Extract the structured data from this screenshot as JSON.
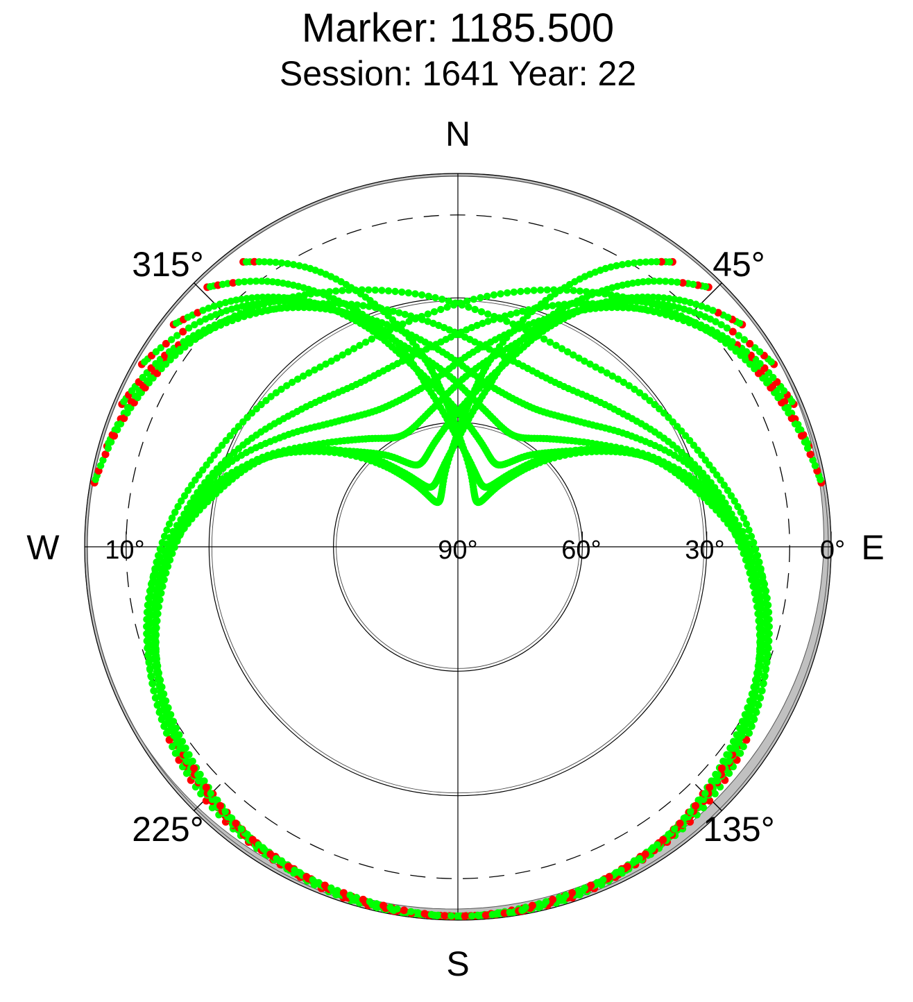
{
  "chart_data": {
    "type": "scatter",
    "projection": "polar-skyplot",
    "title": "Marker: 1185.500",
    "subtitle": "Session: 1641 Year: 22",
    "compass": {
      "north": "N",
      "east": "E",
      "south": "S",
      "west": "W"
    },
    "azimuth_labels": [
      {
        "az": 45,
        "text": "45°"
      },
      {
        "az": 135,
        "text": "135°"
      },
      {
        "az": 225,
        "text": "225°"
      },
      {
        "az": 315,
        "text": "315°"
      }
    ],
    "elevation_labels": [
      {
        "el": 90,
        "text": "90°"
      },
      {
        "el": 60,
        "text": "60°"
      },
      {
        "el": 30,
        "text": "30°"
      },
      {
        "el": 0,
        "text": "0°"
      },
      {
        "el": 10,
        "text": "10°"
      }
    ],
    "elevation_circles": [
      0,
      30,
      60
    ],
    "cutoff_elevation": 10,
    "elevation_range": [
      0,
      90
    ],
    "grid": true,
    "colors": {
      "observed": "#00ff00",
      "flagged": "#ff0000",
      "horizon_mask": "#c0c0c0",
      "grid": "#000000"
    },
    "hole": {
      "center_az": 0,
      "center_el": 36,
      "radius_deg": 30
    },
    "tracks": [
      {
        "sense": "cw",
        "az": [
          323,
          332,
          341,
          350,
          356,
          3,
          16,
          26,
          34,
          42,
          55,
          66,
          80,
          96,
          112,
          128,
          150,
          176
        ],
        "el": [
          4,
          14,
          28,
          44,
          56,
          66,
          76,
          78,
          72,
          64,
          50,
          38,
          26,
          16,
          10,
          6,
          3,
          1
        ]
      },
      {
        "sense": "ccw",
        "az": [
          37,
          28,
          19,
          10,
          4,
          357,
          344,
          334,
          326,
          318,
          305,
          294,
          280,
          264,
          248,
          232,
          210,
          184
        ],
        "el": [
          4,
          14,
          28,
          44,
          56,
          66,
          76,
          78,
          72,
          64,
          50,
          38,
          26,
          16,
          10,
          6,
          3,
          1
        ]
      },
      {
        "sense": "cw",
        "az": [
          316,
          325,
          334,
          343,
          350,
          0,
          14,
          26,
          36,
          46,
          60,
          72,
          86,
          102,
          118,
          134,
          154,
          170
        ],
        "el": [
          3,
          12,
          24,
          38,
          52,
          64,
          72,
          74,
          68,
          58,
          44,
          33,
          23,
          14,
          8,
          4,
          2,
          1
        ]
      },
      {
        "sense": "ccw",
        "az": [
          44,
          35,
          26,
          17,
          10,
          0,
          346,
          334,
          324,
          314,
          300,
          288,
          274,
          258,
          242,
          226,
          206,
          190
        ],
        "el": [
          3,
          12,
          24,
          38,
          52,
          64,
          72,
          74,
          68,
          58,
          44,
          33,
          23,
          14,
          8,
          4,
          2,
          1
        ]
      },
      {
        "sense": "cw",
        "az": [
          308,
          318,
          328,
          337,
          346,
          358,
          12,
          26,
          38,
          50,
          64,
          78,
          92,
          108,
          124,
          140,
          158,
          172
        ],
        "el": [
          3,
          10,
          20,
          32,
          45,
          56,
          64,
          68,
          62,
          54,
          40,
          30,
          20,
          13,
          8,
          4,
          2,
          1
        ]
      },
      {
        "sense": "ccw",
        "az": [
          52,
          42,
          32,
          23,
          14,
          2,
          348,
          334,
          322,
          310,
          296,
          282,
          268,
          252,
          236,
          220,
          202,
          188
        ],
        "el": [
          3,
          10,
          20,
          32,
          45,
          56,
          64,
          68,
          62,
          54,
          40,
          30,
          20,
          13,
          8,
          4,
          2,
          1
        ]
      },
      {
        "sense": "cw",
        "az": [
          300,
          312,
          323,
          333,
          343,
          356,
          10,
          26,
          40,
          54,
          68,
          82,
          98,
          114,
          130,
          146,
          162,
          178
        ],
        "el": [
          2,
          8,
          16,
          26,
          38,
          48,
          56,
          60,
          56,
          48,
          36,
          26,
          18,
          11,
          6,
          3,
          1,
          1
        ]
      },
      {
        "sense": "ccw",
        "az": [
          60,
          48,
          37,
          27,
          17,
          4,
          350,
          334,
          320,
          306,
          292,
          278,
          262,
          246,
          230,
          214,
          198,
          182
        ],
        "el": [
          2,
          8,
          16,
          26,
          38,
          48,
          56,
          60,
          56,
          48,
          36,
          26,
          18,
          11,
          6,
          3,
          1,
          1
        ]
      },
      {
        "sense": "cw",
        "az": [
          293,
          304,
          316,
          328,
          340,
          354,
          10,
          28,
          44,
          58,
          72,
          88,
          104,
          120,
          136,
          152,
          166,
          182
        ],
        "el": [
          2,
          6,
          13,
          22,
          32,
          42,
          50,
          52,
          48,
          40,
          30,
          22,
          15,
          9,
          5,
          3,
          1,
          1
        ]
      },
      {
        "sense": "ccw",
        "az": [
          67,
          56,
          44,
          32,
          20,
          6,
          350,
          332,
          316,
          302,
          288,
          272,
          256,
          240,
          224,
          208,
          194,
          178
        ],
        "el": [
          2,
          6,
          13,
          22,
          32,
          42,
          50,
          52,
          48,
          40,
          30,
          22,
          15,
          9,
          5,
          3,
          1,
          1
        ]
      },
      {
        "sense": "cw",
        "az": [
          286,
          298,
          310,
          323,
          336,
          352,
          10,
          30,
          48,
          64,
          80,
          96,
          112,
          128,
          144,
          158,
          172,
          186
        ],
        "el": [
          2,
          5,
          10,
          18,
          26,
          35,
          42,
          44,
          40,
          33,
          25,
          18,
          12,
          8,
          4,
          2,
          1,
          1
        ]
      },
      {
        "sense": "ccw",
        "az": [
          74,
          62,
          50,
          37,
          24,
          8,
          350,
          330,
          312,
          296,
          280,
          264,
          248,
          232,
          216,
          202,
          188,
          174
        ],
        "el": [
          2,
          5,
          10,
          18,
          26,
          35,
          42,
          44,
          40,
          33,
          25,
          18,
          12,
          8,
          4,
          2,
          1,
          1
        ]
      },
      {
        "sense": "cw",
        "az": [
          280,
          292,
          305,
          319,
          333,
          350,
          10,
          32,
          52,
          70,
          86,
          102,
          118,
          134,
          150,
          164,
          178,
          190
        ],
        "el": [
          1,
          4,
          8,
          14,
          21,
          28,
          34,
          36,
          32,
          27,
          20,
          14,
          10,
          6,
          3,
          2,
          1,
          1
        ]
      },
      {
        "sense": "ccw",
        "az": [
          80,
          68,
          55,
          41,
          27,
          10,
          350,
          328,
          308,
          290,
          274,
          258,
          242,
          226,
          210,
          196,
          182,
          170
        ],
        "el": [
          1,
          4,
          8,
          14,
          21,
          28,
          34,
          36,
          32,
          27,
          20,
          14,
          10,
          6,
          3,
          2,
          1,
          1
        ]
      }
    ],
    "flagged_below_el": 7
  }
}
